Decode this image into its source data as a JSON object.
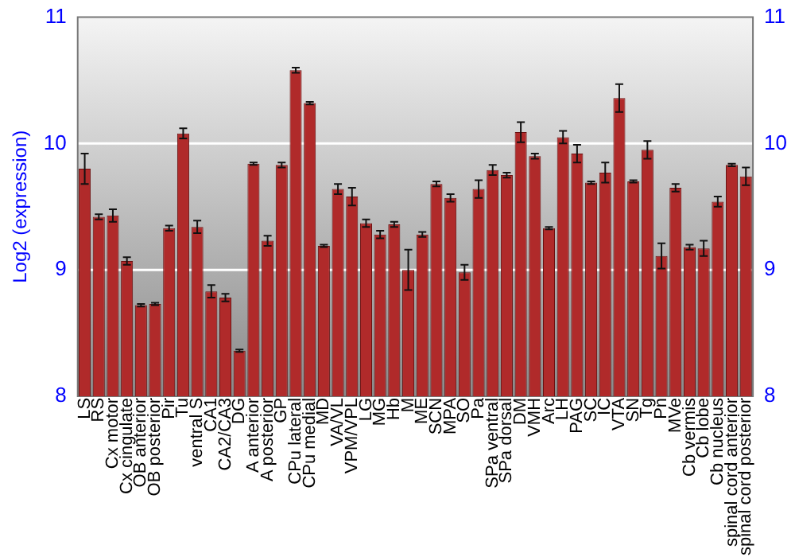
{
  "chart_data": {
    "type": "bar",
    "ylabel": "Log2 (expression)",
    "categories": [
      "LS",
      "RS",
      "Cx motor",
      "Cx cingulate",
      "OB anterior",
      "OB posterior",
      "Pir",
      "Tu",
      "ventral S",
      "CA1",
      "CA2/CA3",
      "DG",
      "A anterior",
      "A posterior",
      "GP",
      "CPu lateral",
      "CPu medial",
      "MD",
      "VA/VL",
      "VPM/VPL",
      "LG",
      "MG",
      "Hb",
      "M",
      "ME",
      "SCN",
      "MPA",
      "SO",
      "Pa",
      "SPa ventral",
      "SPa dorsal",
      "DM",
      "VMH",
      "Arc",
      "LH",
      "PAG",
      "SC",
      "IC",
      "VTA",
      "SN",
      "Tg",
      "Pn",
      "MVe",
      "Cb vermis",
      "Cb lobe",
      "Cb nucleus",
      "spinal cord anterior",
      "spinal cord posterior"
    ],
    "values": [
      9.8,
      9.42,
      9.43,
      9.07,
      8.72,
      8.73,
      9.33,
      10.08,
      9.34,
      8.83,
      8.78,
      8.36,
      9.84,
      9.23,
      9.83,
      10.58,
      10.32,
      9.19,
      9.64,
      9.58,
      9.37,
      9.28,
      9.36,
      9.0,
      9.28,
      9.68,
      9.57,
      8.98,
      9.64,
      9.79,
      9.75,
      10.09,
      9.9,
      9.33,
      10.05,
      9.92,
      9.69,
      9.77,
      10.36,
      9.7,
      9.95,
      9.11,
      9.65,
      9.18,
      9.17,
      9.54,
      9.83,
      9.74
    ],
    "errors": [
      0.12,
      0.02,
      0.05,
      0.03,
      0.01,
      0.01,
      0.02,
      0.04,
      0.05,
      0.05,
      0.03,
      0.01,
      0.01,
      0.04,
      0.02,
      0.02,
      0.01,
      0.01,
      0.04,
      0.07,
      0.03,
      0.03,
      0.02,
      0.16,
      0.02,
      0.02,
      0.03,
      0.06,
      0.07,
      0.04,
      0.02,
      0.08,
      0.02,
      0.01,
      0.05,
      0.07,
      0.01,
      0.08,
      0.11,
      0.01,
      0.07,
      0.1,
      0.03,
      0.02,
      0.06,
      0.04,
      0.01,
      0.07
    ],
    "color": "#b02a2a",
    "ylim": [
      8,
      11
    ],
    "yticks": [
      8,
      9,
      10,
      11
    ],
    "y2lim": [
      8,
      11
    ],
    "y2ticks": [
      8,
      9,
      10,
      11
    ],
    "grid": "y",
    "legend": false
  }
}
